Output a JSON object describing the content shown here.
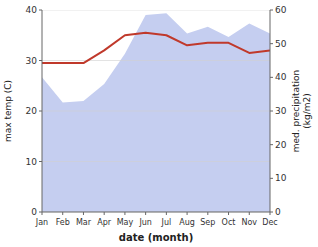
{
  "chart_data": {
    "type": "line",
    "xlabel": "date (month)",
    "ylabel": "max temp (C)",
    "y2label": "med. precipitation\n(kg/m2)",
    "categories": [
      "Jan",
      "Feb",
      "Mar",
      "Apr",
      "May",
      "Jun",
      "Jul",
      "Aug",
      "Sep",
      "Oct",
      "Nov",
      "Dec"
    ],
    "series": [
      {
        "type": "area",
        "axis": "y2",
        "color": "#c5cef0",
        "values": [
          40.0,
          32.5,
          33.0,
          38.0,
          47.0,
          58.5,
          59.0,
          53.0,
          55.0,
          52.0,
          56.0,
          53.0
        ]
      },
      {
        "type": "line",
        "color": "#c0392b",
        "values": [
          29.5,
          29.5,
          29.5,
          32.0,
          35.0,
          35.5,
          35.0,
          33.0,
          33.5,
          33.5,
          31.5,
          32.0
        ]
      }
    ],
    "ylim": [
      0,
      40
    ],
    "yticks": [
      0,
      10,
      20,
      30,
      40
    ],
    "y2lim": [
      0,
      60
    ],
    "y2ticks": [
      0,
      10,
      20,
      30,
      40,
      50,
      60
    ],
    "grid": true
  }
}
